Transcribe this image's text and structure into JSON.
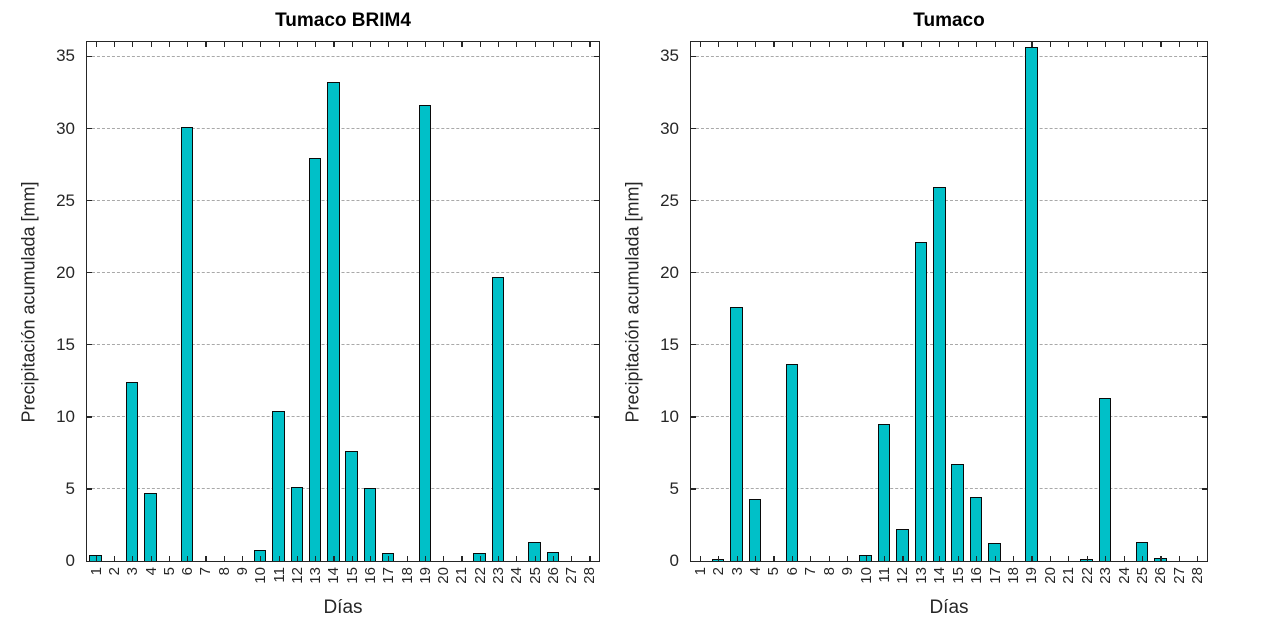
{
  "figure": {
    "background": "#ffffff",
    "axis_color": "#262626",
    "grid_color": "#a9a9a9",
    "title_color": "#000000"
  },
  "chart_data": [
    {
      "type": "bar",
      "title": "Tumaco BRIM4",
      "xlabel": "Días",
      "ylabel": "Precipitación acumulada [mm]",
      "categories": [
        1,
        2,
        3,
        4,
        5,
        6,
        7,
        8,
        9,
        10,
        11,
        12,
        13,
        14,
        15,
        16,
        17,
        18,
        19,
        20,
        21,
        22,
        23,
        24,
        25,
        26,
        27,
        28
      ],
      "values": [
        0.4,
        0,
        12.4,
        4.7,
        0,
        30.1,
        0,
        0,
        0,
        0.7,
        10.4,
        5.1,
        27.9,
        33.2,
        7.6,
        5.0,
        0.5,
        0,
        31.6,
        0,
        0,
        0.5,
        19.7,
        0,
        1.3,
        0.6,
        0,
        0
      ],
      "yticks": [
        0,
        5,
        10,
        15,
        20,
        25,
        30,
        35
      ],
      "ylim": [
        0,
        36
      ],
      "grid": "dashed-horizontal",
      "xtick_rotation_deg": 90,
      "legend": "none",
      "bar_color": "#00c0c8",
      "bar_edge_color": "#0a0a0a"
    },
    {
      "type": "bar",
      "title": "Tumaco",
      "xlabel": "Días",
      "ylabel": "Precipitación acumulada [mm]",
      "categories": [
        1,
        2,
        3,
        4,
        5,
        6,
        7,
        8,
        9,
        10,
        11,
        12,
        13,
        14,
        15,
        16,
        17,
        18,
        19,
        20,
        21,
        22,
        23,
        24,
        25,
        26,
        27,
        28
      ],
      "values": [
        0,
        0.1,
        17.6,
        4.3,
        0,
        13.6,
        0,
        0,
        0,
        0.4,
        9.5,
        2.2,
        22.1,
        25.9,
        6.7,
        4.4,
        1.2,
        0,
        35.6,
        0,
        0,
        0.1,
        11.3,
        0,
        1.3,
        0.2,
        0,
        0
      ],
      "yticks": [
        0,
        5,
        10,
        15,
        20,
        25,
        30,
        35
      ],
      "ylim": [
        0,
        36
      ],
      "grid": "dashed-horizontal",
      "xtick_rotation_deg": 90,
      "legend": "none",
      "bar_color": "#00c0c8",
      "bar_edge_color": "#0a0a0a"
    }
  ]
}
